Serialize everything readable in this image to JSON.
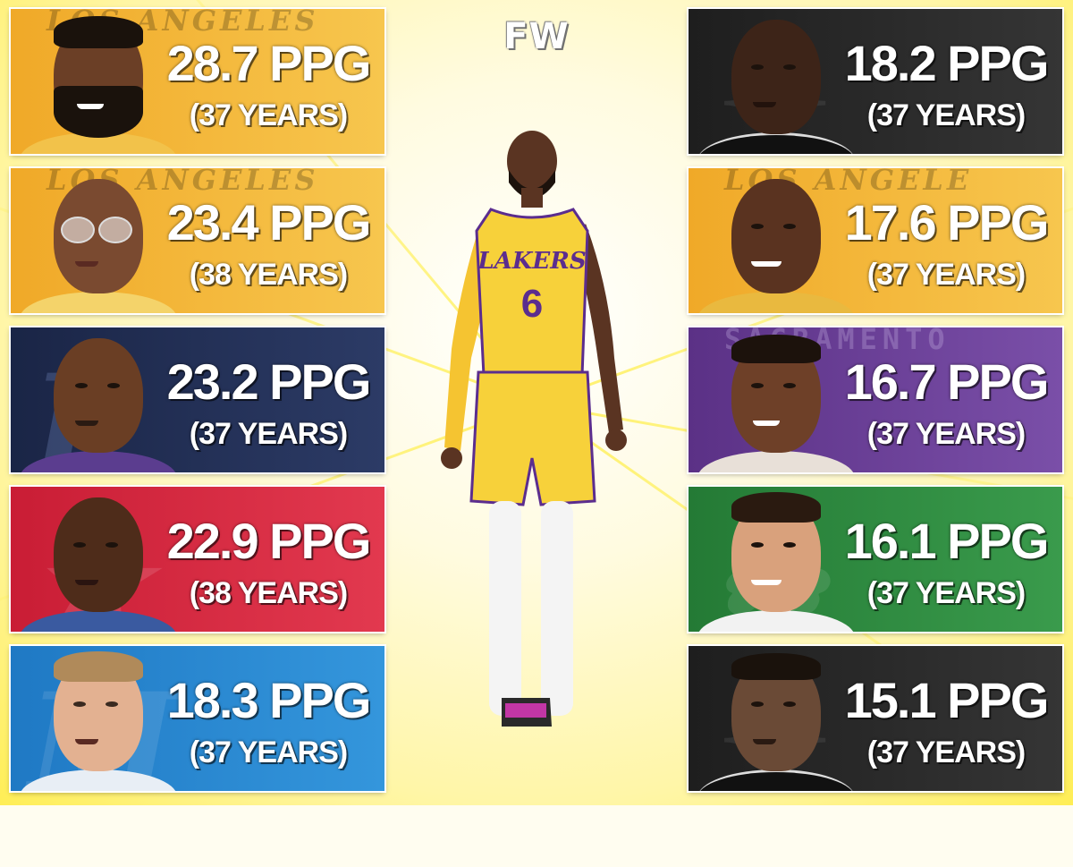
{
  "brand": {
    "logo_text": "FW"
  },
  "colors": {
    "lakers_gold": "#f4b63a",
    "spurs_black": "#2b2b2b",
    "jazz_navy": "#1f2d52",
    "bulls_red": "#d9283f",
    "mavs_blue": "#2a86cf",
    "kings_purple": "#6a3f96",
    "celtics_green": "#2f8a3f"
  },
  "cards": [
    {
      "id": "left-1",
      "ppg": "28.7 PPG",
      "years": "(37 YEARS)",
      "watermark": "LOS ANGELES",
      "theme": "lakers"
    },
    {
      "id": "left-2",
      "ppg": "23.4 PPG",
      "years": "(38 YEARS)",
      "watermark": "LOS ANGELES",
      "theme": "lakers"
    },
    {
      "id": "left-3",
      "ppg": "23.2 PPG",
      "years": "(37 YEARS)",
      "watermark": "",
      "theme": "jazz"
    },
    {
      "id": "left-4",
      "ppg": "22.9 PPG",
      "years": "(38 YEARS)",
      "watermark": "",
      "theme": "bulls"
    },
    {
      "id": "left-5",
      "ppg": "18.3 PPG",
      "years": "(37 YEARS)",
      "watermark": "",
      "theme": "mavs"
    },
    {
      "id": "right-1",
      "ppg": "18.2 PPG",
      "years": "(37 YEARS)",
      "watermark": "",
      "theme": "spurs"
    },
    {
      "id": "right-2",
      "ppg": "17.6 PPG",
      "years": "(37 YEARS)",
      "watermark": "LOS ANGELE",
      "theme": "lakers"
    },
    {
      "id": "right-3",
      "ppg": "16.7 PPG",
      "years": "(37 YEARS)",
      "watermark": "SACRAMENTO",
      "theme": "kings"
    },
    {
      "id": "right-4",
      "ppg": "16.1 PPG",
      "years": "(37 YEARS)",
      "watermark": "",
      "theme": "celtics"
    },
    {
      "id": "right-5",
      "ppg": "15.1 PPG",
      "years": "(37 YEARS)",
      "watermark": "",
      "theme": "spurs"
    }
  ],
  "center_player": {
    "jersey_text": "LAKERS",
    "jersey_number": "6"
  }
}
